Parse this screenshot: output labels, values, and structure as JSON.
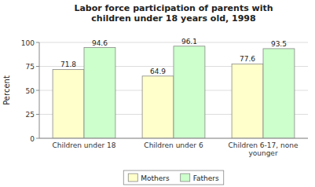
{
  "chart_data": {
    "type": "bar",
    "title": "Labor force participation of parents with\nchildren under 18 years old, 1998",
    "categories": [
      "Children under 18",
      "Children under 6",
      "Children 6-17, none\nyounger"
    ],
    "series": [
      {
        "name": "Mothers",
        "color": "#FFFFCC",
        "values": [
          71.8,
          64.9,
          77.6
        ]
      },
      {
        "name": "Fathers",
        "color": "#CCFFCC",
        "values": [
          94.6,
          96.1,
          93.5
        ]
      }
    ],
    "ylabel": "Percent",
    "ylim": [
      0,
      100
    ],
    "yticks": [
      0,
      25,
      50,
      75,
      100
    ],
    "grid": true,
    "data_labels": true,
    "legend": "bottom"
  }
}
